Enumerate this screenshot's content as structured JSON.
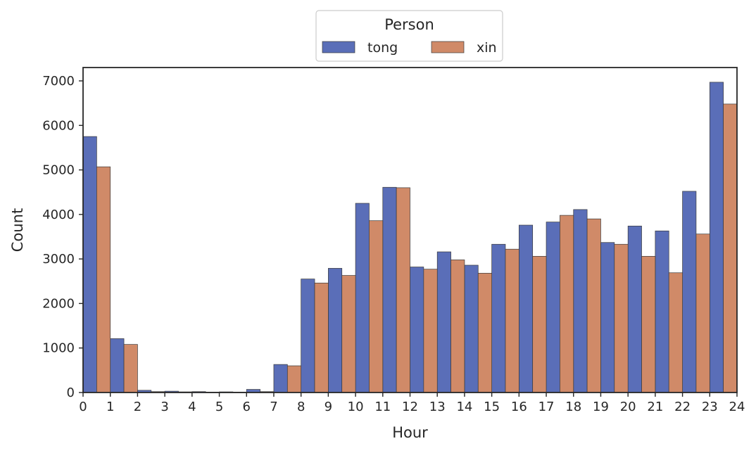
{
  "chart_data": {
    "type": "bar",
    "title": "",
    "xlabel": "Hour",
    "ylabel": "Count",
    "xlim": [
      0,
      24
    ],
    "ylim": [
      0,
      7300
    ],
    "x_ticks": [
      0,
      1,
      2,
      3,
      4,
      5,
      6,
      7,
      8,
      9,
      10,
      11,
      12,
      13,
      14,
      15,
      16,
      17,
      18,
      19,
      20,
      21,
      22,
      23,
      24
    ],
    "y_ticks": [
      0,
      1000,
      2000,
      3000,
      4000,
      5000,
      6000,
      7000
    ],
    "grid": false,
    "legend": {
      "title": "Person",
      "placement": "top-center",
      "columns": 2
    },
    "categories": [
      0,
      1,
      2,
      3,
      4,
      5,
      6,
      7,
      8,
      9,
      10,
      11,
      12,
      13,
      14,
      15,
      16,
      17,
      18,
      19,
      20,
      21,
      22,
      23
    ],
    "series": [
      {
        "name": "tong",
        "color": "#5a6eb8",
        "values": [
          5750,
          1210,
          50,
          30,
          20,
          15,
          70,
          630,
          2550,
          2790,
          4250,
          4610,
          2820,
          3160,
          2860,
          3330,
          3760,
          3830,
          4110,
          3370,
          3740,
          3630,
          4520,
          6970
        ]
      },
      {
        "name": "xin",
        "color": "#d08a68",
        "values": [
          5070,
          1080,
          20,
          15,
          10,
          10,
          20,
          600,
          2460,
          2630,
          3860,
          4600,
          2770,
          2980,
          2680,
          3220,
          3060,
          3980,
          3900,
          3330,
          3060,
          2690,
          3560,
          6480
        ]
      }
    ]
  }
}
